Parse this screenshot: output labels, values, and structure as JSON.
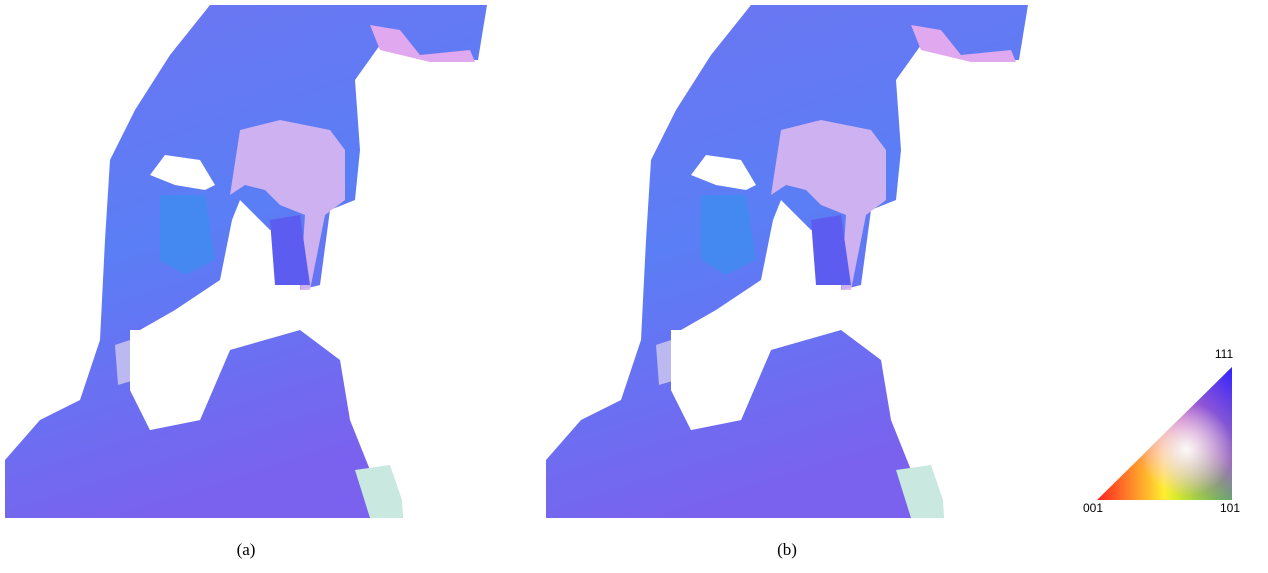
{
  "panels": [
    {
      "caption": "(a)"
    },
    {
      "caption": "(b)"
    }
  ],
  "color_key": {
    "corner_top": "111",
    "corner_left": "001",
    "corner_right": "101"
  }
}
